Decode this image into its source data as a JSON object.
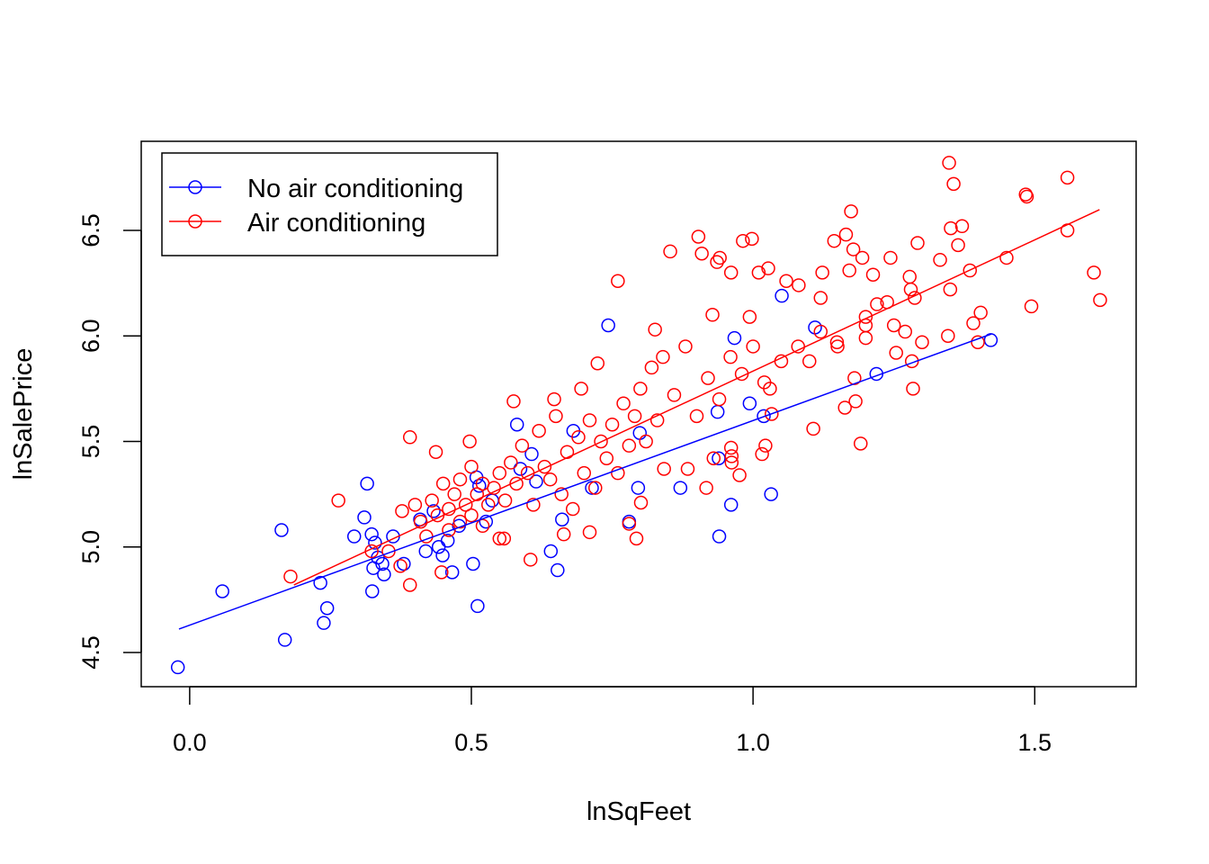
{
  "chart_data": {
    "type": "scatter",
    "title": "",
    "xlabel": "lnSqFeet",
    "ylabel": "lnSalePrice",
    "xlim": [
      -0.086,
      1.68
    ],
    "ylim": [
      4.338,
      6.922
    ],
    "xticks": [
      0.0,
      0.5,
      1.0,
      1.5
    ],
    "xtick_labels": [
      "0.0",
      "0.5",
      "1.0",
      "1.5"
    ],
    "yticks": [
      4.5,
      5.0,
      5.5,
      6.0,
      6.5
    ],
    "ytick_labels": [
      "4.5",
      "5.0",
      "5.5",
      "6.0",
      "6.5"
    ],
    "grid": false,
    "legend": {
      "position": "top-left",
      "entries": [
        "No air conditioning",
        "Air conditioning"
      ]
    },
    "series": [
      {
        "name": "No air conditioning",
        "color": "#0000ff",
        "marker": "open-circle",
        "fit_line": [
          [
            -0.019,
            4.611
          ],
          [
            1.423,
            6.009
          ]
        ],
        "points": [
          [
            -0.021,
            4.43
          ],
          [
            0.058,
            4.79
          ],
          [
            0.163,
            5.08
          ],
          [
            0.169,
            4.56
          ],
          [
            0.232,
            4.83
          ],
          [
            0.238,
            4.64
          ],
          [
            0.244,
            4.71
          ],
          [
            0.292,
            5.05
          ],
          [
            0.31,
            5.14
          ],
          [
            0.315,
            5.3
          ],
          [
            0.323,
            5.06
          ],
          [
            0.329,
            5.02
          ],
          [
            0.326,
            4.9
          ],
          [
            0.324,
            4.79
          ],
          [
            0.334,
            4.95
          ],
          [
            0.342,
            4.92
          ],
          [
            0.345,
            4.87
          ],
          [
            0.361,
            5.05
          ],
          [
            0.38,
            4.92
          ],
          [
            0.409,
            5.13
          ],
          [
            0.419,
            4.98
          ],
          [
            0.433,
            5.17
          ],
          [
            0.442,
            5.0
          ],
          [
            0.449,
            4.96
          ],
          [
            0.466,
            4.88
          ],
          [
            0.458,
            5.03
          ],
          [
            0.478,
            5.1
          ],
          [
            0.503,
            4.92
          ],
          [
            0.509,
            5.33
          ],
          [
            0.514,
            5.29
          ],
          [
            0.511,
            4.72
          ],
          [
            0.526,
            5.12
          ],
          [
            0.537,
            5.22
          ],
          [
            0.581,
            5.58
          ],
          [
            0.587,
            5.37
          ],
          [
            0.607,
            5.44
          ],
          [
            0.615,
            5.31
          ],
          [
            0.641,
            4.98
          ],
          [
            0.653,
            4.89
          ],
          [
            0.661,
            5.13
          ],
          [
            0.681,
            5.55
          ],
          [
            0.714,
            5.28
          ],
          [
            0.743,
            6.05
          ],
          [
            0.78,
            5.12
          ],
          [
            0.796,
            5.28
          ],
          [
            0.799,
            5.54
          ],
          [
            0.871,
            5.28
          ],
          [
            0.939,
            5.42
          ],
          [
            0.937,
            5.64
          ],
          [
            0.94,
            5.05
          ],
          [
            0.961,
            5.2
          ],
          [
            0.967,
            5.99
          ],
          [
            0.994,
            5.68
          ],
          [
            1.019,
            5.62
          ],
          [
            1.032,
            5.25
          ],
          [
            1.051,
            6.19
          ],
          [
            1.11,
            6.04
          ],
          [
            1.219,
            5.82
          ],
          [
            1.422,
            5.98
          ]
        ]
      },
      {
        "name": "Air conditioning",
        "color": "#ff0000",
        "marker": "open-circle",
        "fit_line": [
          [
            0.185,
            4.82
          ],
          [
            1.615,
            6.598
          ]
        ],
        "points": [
          [
            0.179,
            4.86
          ],
          [
            0.264,
            5.22
          ],
          [
            0.391,
            5.52
          ],
          [
            0.391,
            4.82
          ],
          [
            0.437,
            5.45
          ],
          [
            0.497,
            5.5
          ],
          [
            0.575,
            5.69
          ],
          [
            0.647,
            5.7
          ],
          [
            0.695,
            5.75
          ],
          [
            0.724,
            5.87
          ],
          [
            0.76,
            6.26
          ],
          [
            0.826,
            6.03
          ],
          [
            0.853,
            6.4
          ],
          [
            0.903,
            6.47
          ],
          [
            0.909,
            6.39
          ],
          [
            0.928,
            6.1
          ],
          [
            0.936,
            6.35
          ],
          [
            0.941,
            6.37
          ],
          [
            0.961,
            6.3
          ],
          [
            0.982,
            6.45
          ],
          [
            0.998,
            6.46
          ],
          [
            0.994,
            6.09
          ],
          [
            1.027,
            6.32
          ],
          [
            1.01,
            6.3
          ],
          [
            1.059,
            6.26
          ],
          [
            1.081,
            6.24
          ],
          [
            1.12,
            6.18
          ],
          [
            1.123,
            6.3
          ],
          [
            1.144,
            6.45
          ],
          [
            1.165,
            6.48
          ],
          [
            1.174,
            6.59
          ],
          [
            1.178,
            6.41
          ],
          [
            1.194,
            6.37
          ],
          [
            1.171,
            6.31
          ],
          [
            1.2,
            6.09
          ],
          [
            1.213,
            6.29
          ],
          [
            1.238,
            6.16
          ],
          [
            1.244,
            6.37
          ],
          [
            1.278,
            6.28
          ],
          [
            1.292,
            6.44
          ],
          [
            1.287,
            6.18
          ],
          [
            1.332,
            6.36
          ],
          [
            1.348,
            6.82
          ],
          [
            1.356,
            6.72
          ],
          [
            1.351,
            6.51
          ],
          [
            1.371,
            6.52
          ],
          [
            1.364,
            6.43
          ],
          [
            1.385,
            6.31
          ],
          [
            1.391,
            6.06
          ],
          [
            1.404,
            6.11
          ],
          [
            1.45,
            6.37
          ],
          [
            1.484,
            6.67
          ],
          [
            1.486,
            6.66
          ],
          [
            1.494,
            6.14
          ],
          [
            1.558,
            6.75
          ],
          [
            1.558,
            6.5
          ],
          [
            1.605,
            6.3
          ],
          [
            1.616,
            6.17
          ],
          [
            1.399,
            5.97
          ],
          [
            1.346,
            6.0
          ],
          [
            1.284,
            5.75
          ],
          [
            1.282,
            5.88
          ],
          [
            1.191,
            5.49
          ],
          [
            1.163,
            5.66
          ],
          [
            1.107,
            5.56
          ],
          [
            1.182,
            5.69
          ],
          [
            1.2,
            5.99
          ],
          [
            1.27,
            6.02
          ],
          [
            1.254,
            5.92
          ],
          [
            1.149,
            5.97
          ],
          [
            1.03,
            5.75
          ],
          [
            1.033,
            5.63
          ],
          [
            1.016,
            5.44
          ],
          [
            1.022,
            5.48
          ],
          [
            0.976,
            5.34
          ],
          [
            0.962,
            5.43
          ],
          [
            0.961,
            5.47
          ],
          [
            0.962,
            5.4
          ],
          [
            0.93,
            5.42
          ],
          [
            0.917,
            5.28
          ],
          [
            0.884,
            5.37
          ],
          [
            0.842,
            5.37
          ],
          [
            0.801,
            5.21
          ],
          [
            0.793,
            5.04
          ],
          [
            0.78,
            5.11
          ],
          [
            0.71,
            5.07
          ],
          [
            0.664,
            5.06
          ],
          [
            0.605,
            4.94
          ],
          [
            0.55,
            5.04
          ],
          [
            0.558,
            5.04
          ],
          [
            0.447,
            4.88
          ],
          [
            0.374,
            4.91
          ],
          [
            0.353,
            4.98
          ],
          [
            0.323,
            4.98
          ],
          [
            0.377,
            5.17
          ],
          [
            0.4,
            5.2
          ],
          [
            0.41,
            5.12
          ],
          [
            0.42,
            5.05
          ],
          [
            0.43,
            5.22
          ],
          [
            0.44,
            5.15
          ],
          [
            0.45,
            5.3
          ],
          [
            0.46,
            5.18
          ],
          [
            0.46,
            5.08
          ],
          [
            0.47,
            5.25
          ],
          [
            0.48,
            5.12
          ],
          [
            0.48,
            5.32
          ],
          [
            0.49,
            5.2
          ],
          [
            0.5,
            5.38
          ],
          [
            0.5,
            5.15
          ],
          [
            0.51,
            5.25
          ],
          [
            0.52,
            5.1
          ],
          [
            0.52,
            5.3
          ],
          [
            0.53,
            5.2
          ],
          [
            0.54,
            5.28
          ],
          [
            0.55,
            5.35
          ],
          [
            0.56,
            5.22
          ],
          [
            0.57,
            5.4
          ],
          [
            0.58,
            5.3
          ],
          [
            0.59,
            5.48
          ],
          [
            0.6,
            5.35
          ],
          [
            0.61,
            5.2
          ],
          [
            0.62,
            5.55
          ],
          [
            0.63,
            5.38
          ],
          [
            0.64,
            5.32
          ],
          [
            0.65,
            5.62
          ],
          [
            0.66,
            5.25
          ],
          [
            0.67,
            5.45
          ],
          [
            0.68,
            5.18
          ],
          [
            0.69,
            5.52
          ],
          [
            0.7,
            5.35
          ],
          [
            0.71,
            5.6
          ],
          [
            0.72,
            5.28
          ],
          [
            0.73,
            5.5
          ],
          [
            0.74,
            5.42
          ],
          [
            0.75,
            5.58
          ],
          [
            0.76,
            5.35
          ],
          [
            0.77,
            5.68
          ],
          [
            0.78,
            5.48
          ],
          [
            0.79,
            5.62
          ],
          [
            0.8,
            5.75
          ],
          [
            0.81,
            5.5
          ],
          [
            0.82,
            5.85
          ],
          [
            0.83,
            5.6
          ],
          [
            0.84,
            5.9
          ],
          [
            0.86,
            5.72
          ],
          [
            0.88,
            5.95
          ],
          [
            0.9,
            5.62
          ],
          [
            0.92,
            5.8
          ],
          [
            0.94,
            5.7
          ],
          [
            0.96,
            5.9
          ],
          [
            0.98,
            5.82
          ],
          [
            1.0,
            5.95
          ],
          [
            1.02,
            5.78
          ],
          [
            1.05,
            5.88
          ],
          [
            1.08,
            5.95
          ],
          [
            1.1,
            5.88
          ],
          [
            1.12,
            6.02
          ],
          [
            1.15,
            5.95
          ],
          [
            1.18,
            5.8
          ],
          [
            1.2,
            6.05
          ],
          [
            1.22,
            6.15
          ],
          [
            1.25,
            6.05
          ],
          [
            1.28,
            6.22
          ],
          [
            1.3,
            5.97
          ],
          [
            1.35,
            6.22
          ]
        ]
      }
    ]
  }
}
